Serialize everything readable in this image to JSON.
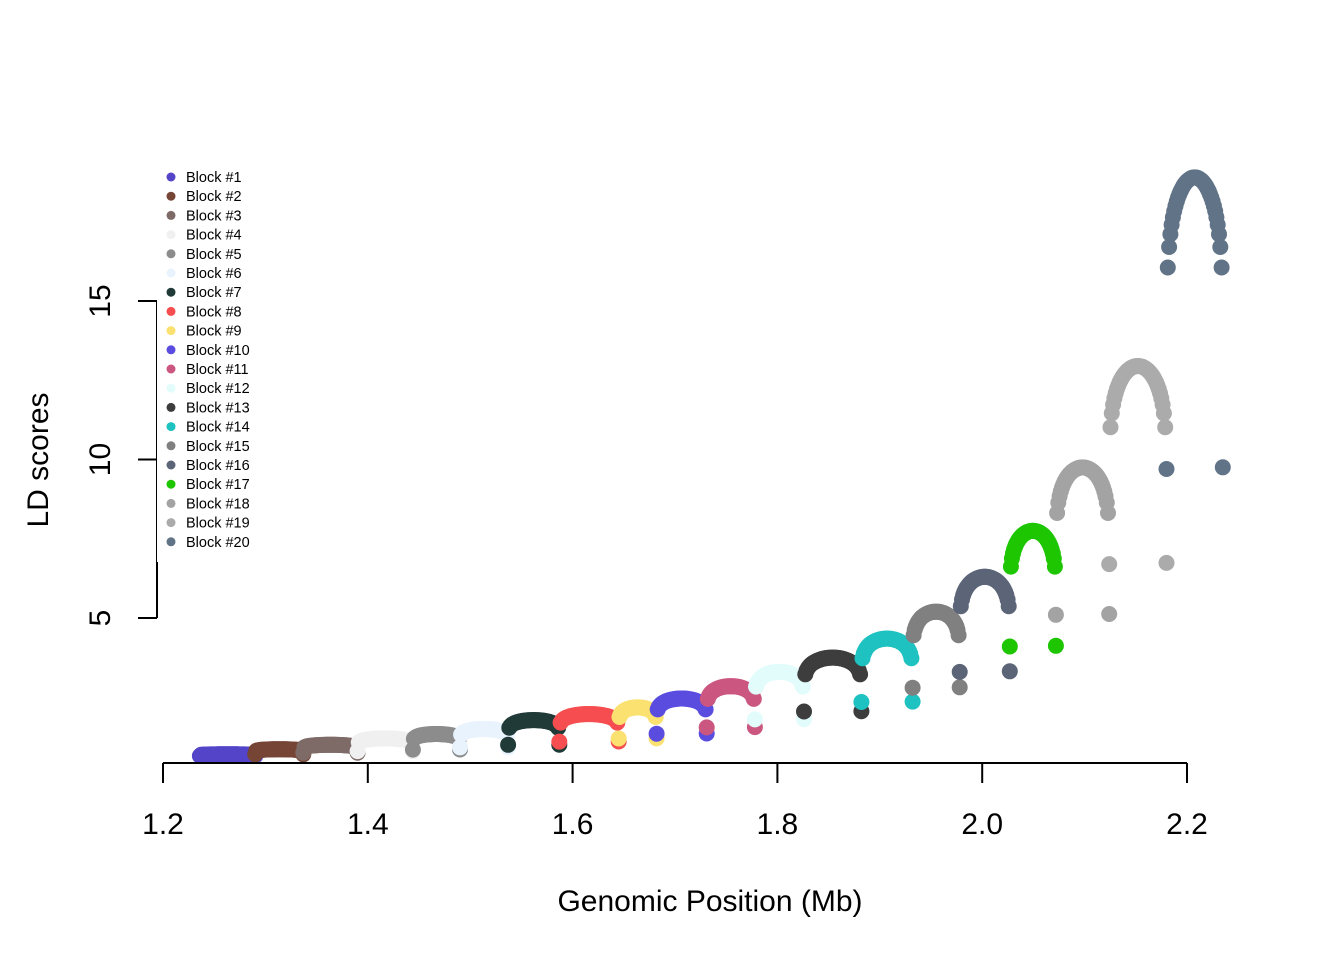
{
  "chart_data": {
    "type": "scatter",
    "title": "",
    "xlabel": "Genomic Position (Mb)",
    "ylabel": "LD scores",
    "xlim": [
      1.2,
      2.22
    ],
    "ylim": [
      5,
      15
    ],
    "x_ticks": [
      "1.2",
      "1.4",
      "1.6",
      "1.8",
      "2.0",
      "2.2"
    ],
    "y_ticks": [
      "5",
      "10",
      "15"
    ],
    "legend_position": "top-left",
    "grid": false,
    "series": [
      {
        "name": "Block #1",
        "color": "#5344C8",
        "x_start": 1.236,
        "x_end": 1.29,
        "peak": 0.7,
        "base": 0.65
      },
      {
        "name": "Block #2",
        "color": "#764535",
        "x_start": 1.29,
        "x_end": 1.337,
        "peak": 0.86,
        "base": 0.7
      },
      {
        "name": "Block #3",
        "color": "#7E6B67",
        "x_start": 1.337,
        "x_end": 1.39,
        "peak": 1.0,
        "base": 0.75
      },
      {
        "name": "Block #4",
        "color": "#F0F0F0",
        "x_start": 1.39,
        "x_end": 1.444,
        "peak": 1.2,
        "base": 0.8
      },
      {
        "name": "Block #5",
        "color": "#8C8C8C",
        "x_start": 1.444,
        "x_end": 1.49,
        "peak": 1.34,
        "base": 0.85
      },
      {
        "name": "Block #6",
        "color": "#E8F3FE",
        "x_start": 1.49,
        "x_end": 1.537,
        "peak": 1.5,
        "base": 0.92
      },
      {
        "name": "Block #7",
        "color": "#203A38",
        "x_start": 1.537,
        "x_end": 1.587,
        "peak": 1.78,
        "base": 1.0
      },
      {
        "name": "Block #8",
        "color": "#F64E50",
        "x_start": 1.587,
        "x_end": 1.645,
        "peak": 1.97,
        "base": 1.1
      },
      {
        "name": "Block #9",
        "color": "#FBE170",
        "x_start": 1.645,
        "x_end": 1.682,
        "peak": 2.18,
        "base": 1.2
      },
      {
        "name": "Block #10",
        "color": "#5B4CE0",
        "x_start": 1.682,
        "x_end": 1.731,
        "peak": 2.46,
        "base": 1.35
      },
      {
        "name": "Block #11",
        "color": "#CB5680",
        "x_start": 1.731,
        "x_end": 1.778,
        "peak": 2.85,
        "base": 1.55
      },
      {
        "name": "Block #12",
        "color": "#E2FCFB",
        "x_start": 1.778,
        "x_end": 1.826,
        "peak": 3.3,
        "base": 1.8
      },
      {
        "name": "Block #13",
        "color": "#3D3D3D",
        "x_start": 1.826,
        "x_end": 1.882,
        "peak": 3.75,
        "base": 2.05
      },
      {
        "name": "Block #14",
        "color": "#1EC2C0",
        "x_start": 1.882,
        "x_end": 1.932,
        "peak": 4.35,
        "base": 2.35
      },
      {
        "name": "Block #15",
        "color": "#808080",
        "x_start": 1.932,
        "x_end": 1.978,
        "peak": 5.2,
        "base": 2.8
      },
      {
        "name": "Block #16",
        "color": "#5B6577",
        "x_start": 1.978,
        "x_end": 2.027,
        "peak": 6.3,
        "base": 3.3
      },
      {
        "name": "Block #17",
        "color": "#1DC601",
        "x_start": 2.027,
        "x_end": 2.072,
        "peak": 7.75,
        "base": 4.1
      },
      {
        "name": "Block #18",
        "color": "#A3A3A3",
        "x_start": 2.072,
        "x_end": 2.124,
        "peak": 9.75,
        "base": 5.1
      },
      {
        "name": "Block #19",
        "color": "#ABABAB",
        "x_start": 2.124,
        "x_end": 2.18,
        "peak": 12.95,
        "base": 6.7
      },
      {
        "name": "Block #20",
        "color": "#617387",
        "x_start": 2.18,
        "x_end": 2.235,
        "peak": 18.9,
        "base": 9.7
      }
    ]
  }
}
